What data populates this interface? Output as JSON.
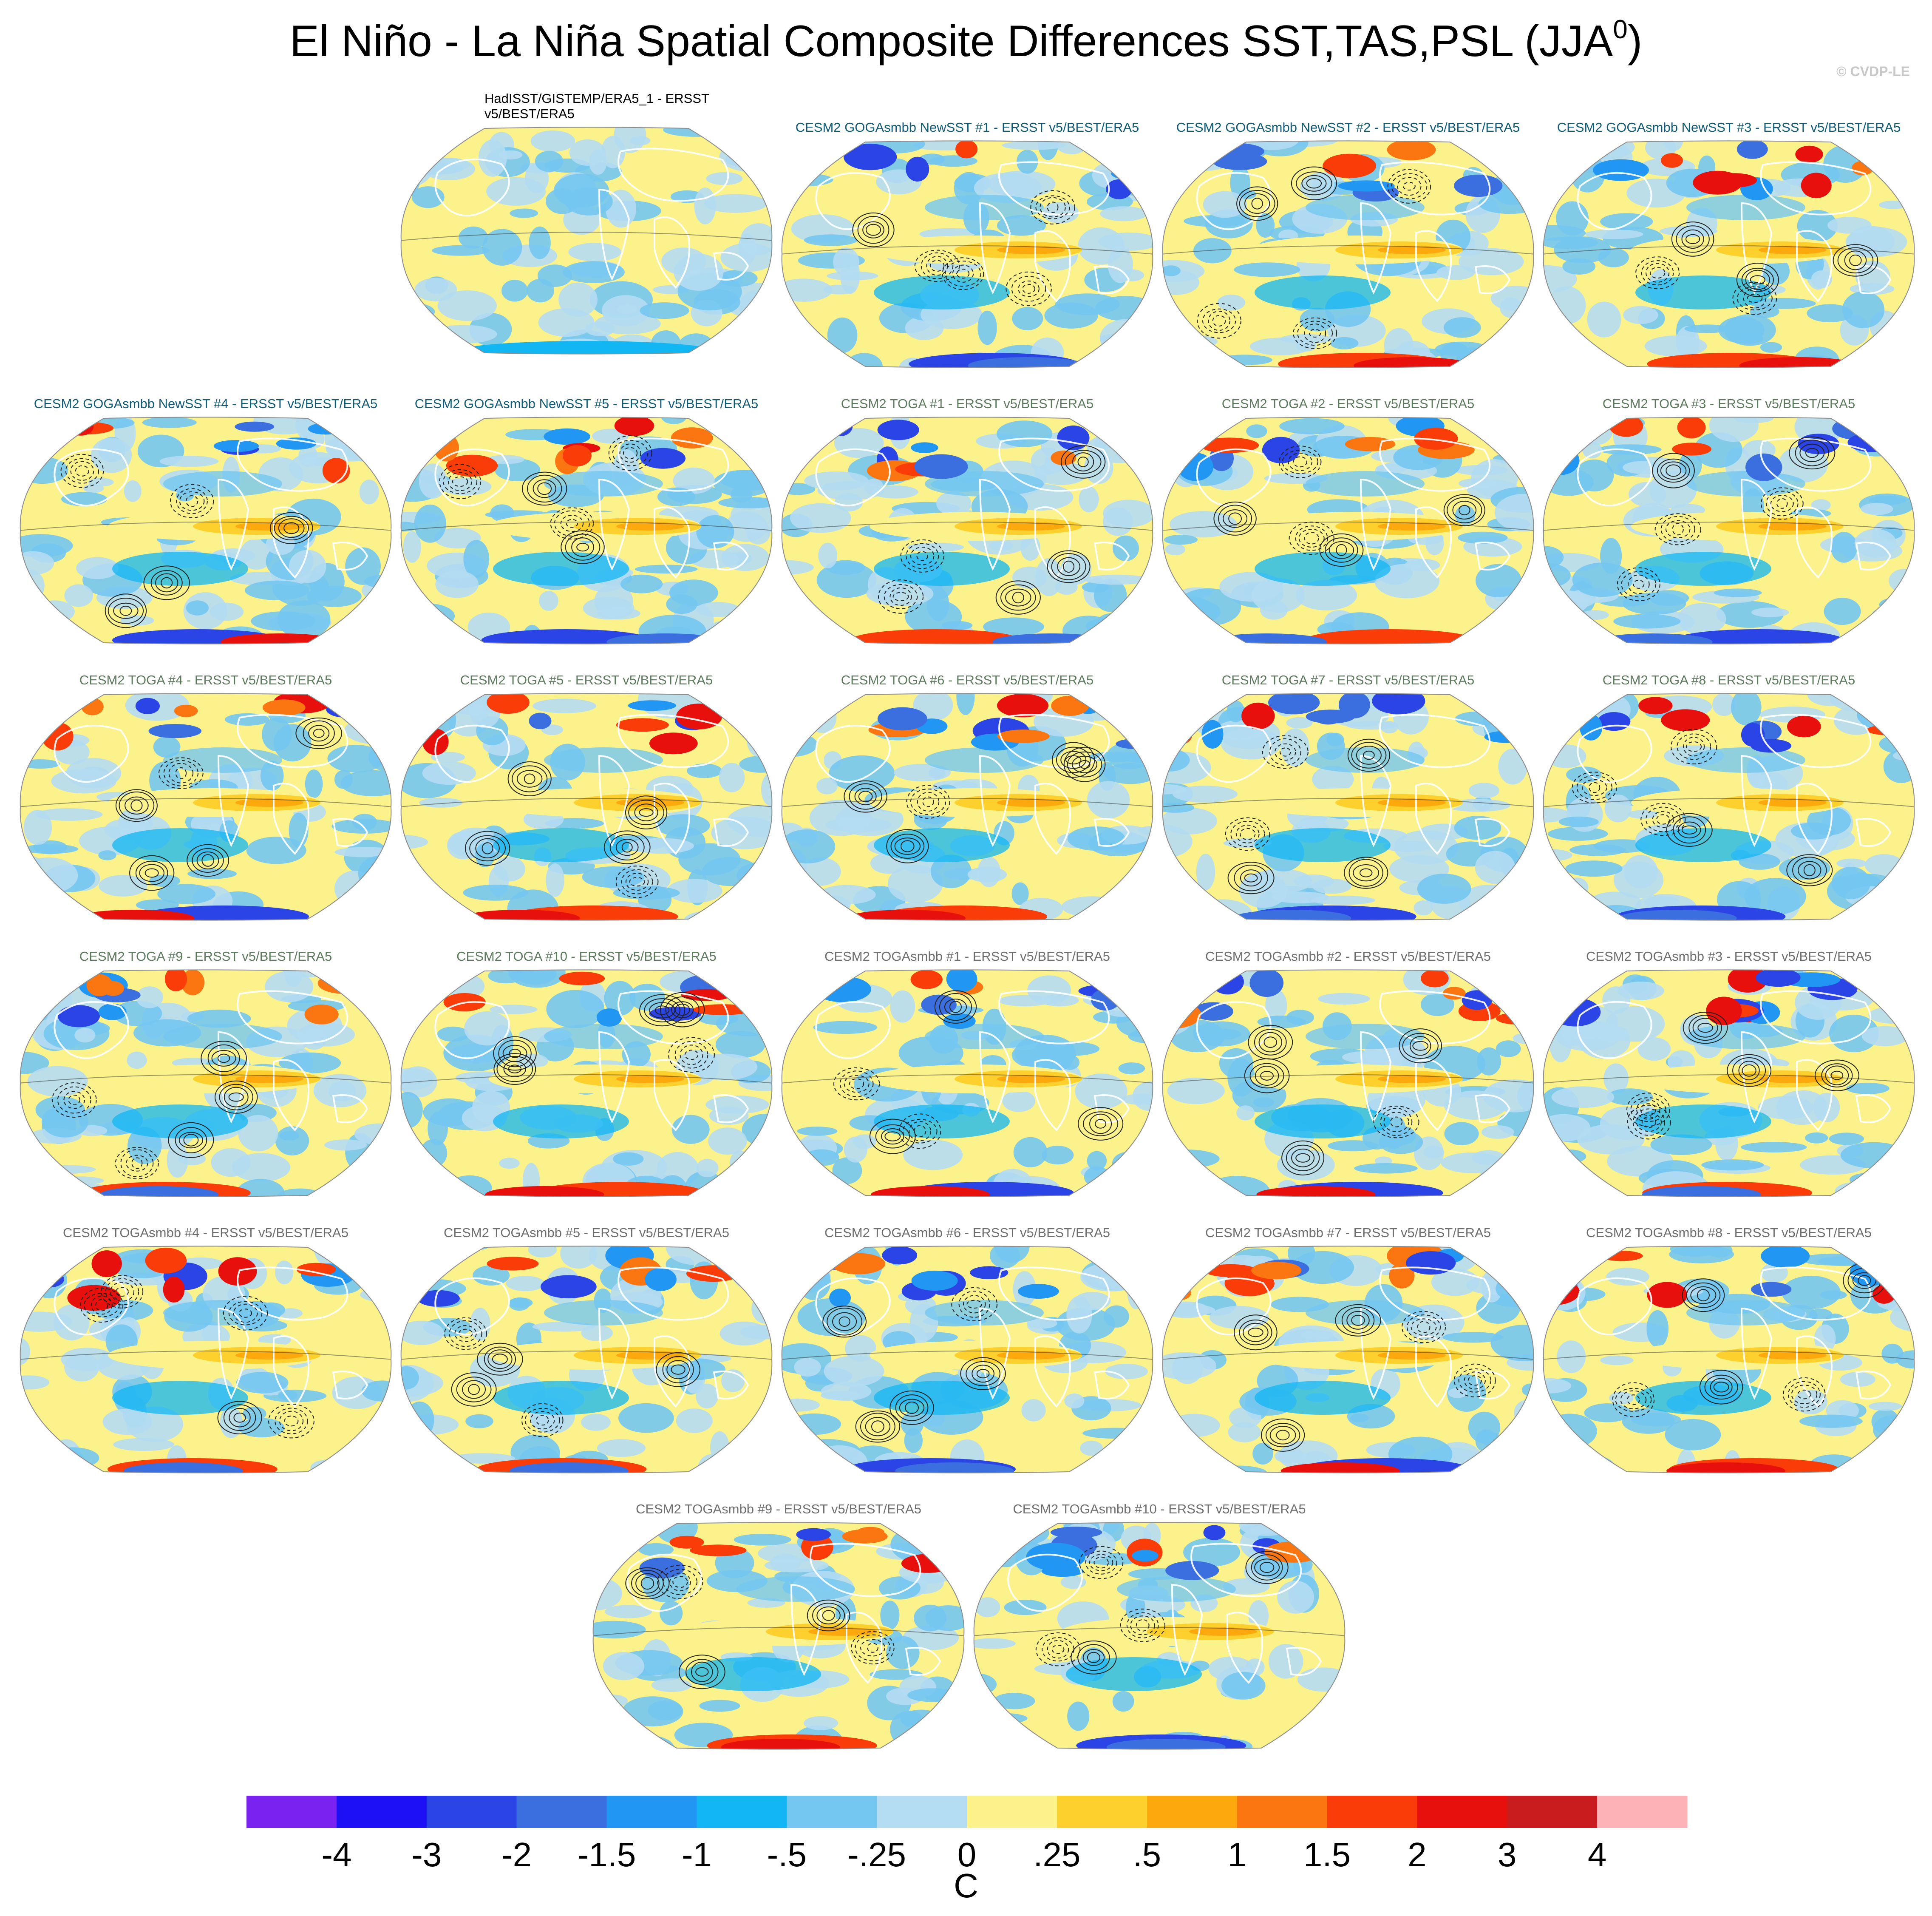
{
  "title": "El Niño - La Niña Spatial Composite Differences SST,TAS,PSL (JJA",
  "title_superscript": "0",
  "title_close": ")",
  "credit": "© CVDP-LE",
  "colors": {
    "ocean_line": "#ffffff",
    "border": "#8c8c8c"
  },
  "panels": [
    {
      "label": "HadISST/GISTEMP/ERA5_1 - ERSST v5/BEST/ERA5",
      "group": "obs"
    },
    {
      "label": "CESM2 GOGAsmbb NewSST #1 - ERSST v5/BEST/ERA5",
      "group": "t1"
    },
    {
      "label": "CESM2 GOGAsmbb NewSST #2 - ERSST v5/BEST/ERA5",
      "group": "t1"
    },
    {
      "label": "CESM2 GOGAsmbb NewSST #3 - ERSST v5/BEST/ERA5",
      "group": "t1"
    },
    {
      "label": "CESM2 GOGAsmbb NewSST #4 - ERSST v5/BEST/ERA5",
      "group": "t1"
    },
    {
      "label": "CESM2 GOGAsmbb NewSST #5 - ERSST v5/BEST/ERA5",
      "group": "t1"
    },
    {
      "label": "CESM2 TOGA #1 - ERSST v5/BEST/ERA5",
      "group": "t2"
    },
    {
      "label": "CESM2 TOGA #2 - ERSST v5/BEST/ERA5",
      "group": "t2"
    },
    {
      "label": "CESM2 TOGA #3 - ERSST v5/BEST/ERA5",
      "group": "t2"
    },
    {
      "label": "CESM2 TOGA #4 - ERSST v5/BEST/ERA5",
      "group": "t2"
    },
    {
      "label": "CESM2 TOGA #5 - ERSST v5/BEST/ERA5",
      "group": "t2"
    },
    {
      "label": "CESM2 TOGA #6 - ERSST v5/BEST/ERA5",
      "group": "t2"
    },
    {
      "label": "CESM2 TOGA #7 - ERSST v5/BEST/ERA5",
      "group": "t2"
    },
    {
      "label": "CESM2 TOGA #8 - ERSST v5/BEST/ERA5",
      "group": "t2"
    },
    {
      "label": "CESM2 TOGA #9 - ERSST v5/BEST/ERA5",
      "group": "t2"
    },
    {
      "label": "CESM2 TOGA #10 - ERSST v5/BEST/ERA5",
      "group": "t2"
    },
    {
      "label": "CESM2 TOGAsmbb #1 - ERSST v5/BEST/ERA5",
      "group": "t3"
    },
    {
      "label": "CESM2 TOGAsmbb #2 - ERSST v5/BEST/ERA5",
      "group": "t3"
    },
    {
      "label": "CESM2 TOGAsmbb #3 - ERSST v5/BEST/ERA5",
      "group": "t3"
    },
    {
      "label": "CESM2 TOGAsmbb #4 - ERSST v5/BEST/ERA5",
      "group": "t3"
    },
    {
      "label": "CESM2 TOGAsmbb #5 - ERSST v5/BEST/ERA5",
      "group": "t3"
    },
    {
      "label": "CESM2 TOGAsmbb #6 - ERSST v5/BEST/ERA5",
      "group": "t3"
    },
    {
      "label": "CESM2 TOGAsmbb #7 - ERSST v5/BEST/ERA5",
      "group": "t3"
    },
    {
      "label": "CESM2 TOGAsmbb #8 - ERSST v5/BEST/ERA5",
      "group": "t3"
    },
    {
      "label": "CESM2 TOGAsmbb #9 - ERSST v5/BEST/ERA5",
      "group": "t3"
    },
    {
      "label": "CESM2 TOGAsmbb #10 - ERSST v5/BEST/ERA5",
      "group": "t3"
    }
  ],
  "chart_data": {
    "type": "heatmap",
    "projection": "robinson",
    "colorbar": {
      "unit": "C",
      "tick_labels": [
        "-4",
        "-3",
        "-2",
        "-1.5",
        "-1",
        "-.5",
        "-.25",
        "0",
        ".25",
        ".5",
        "1",
        "1.5",
        "2",
        "3",
        "4"
      ],
      "colors": [
        "#7a22f0",
        "#1e10f5",
        "#2a44e6",
        "#3b6fe0",
        "#2196f3",
        "#12b6f3",
        "#74c7f1",
        "#b4dcf2",
        "#fcf28c",
        "#fdd02e",
        "#fda80c",
        "#fb7510",
        "#fa3c08",
        "#e8100c",
        "#c81c1e",
        "#fcb2b6"
      ]
    }
  }
}
